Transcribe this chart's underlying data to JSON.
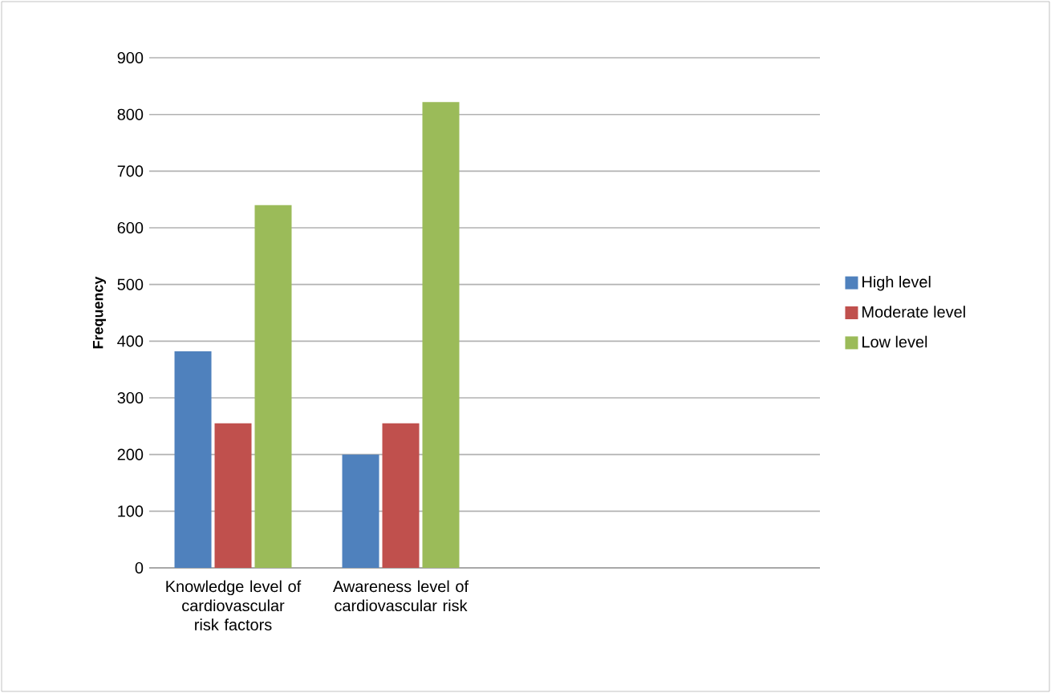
{
  "chart_data": {
    "type": "bar",
    "ylabel": "Frequency",
    "categories": [
      "Knowledge level of cardiovascular risk factors",
      "Awareness level of cardiovascular risk",
      null,
      null
    ],
    "series": [
      {
        "name": "High  level",
        "color": "#4f81bd",
        "values": [
          382,
          200,
          null,
          null
        ]
      },
      {
        "name": "Moderate  level",
        "color": "#c0504d",
        "values": [
          255,
          255,
          null,
          null
        ]
      },
      {
        "name": "Low level",
        "color": "#9bbb59",
        "values": [
          640,
          822,
          null,
          null
        ]
      }
    ],
    "ylim": [
      0,
      900
    ],
    "yticks": [
      0,
      100,
      200,
      300,
      400,
      500,
      600,
      700,
      800,
      900
    ],
    "grid": "y",
    "legend": "right"
  }
}
